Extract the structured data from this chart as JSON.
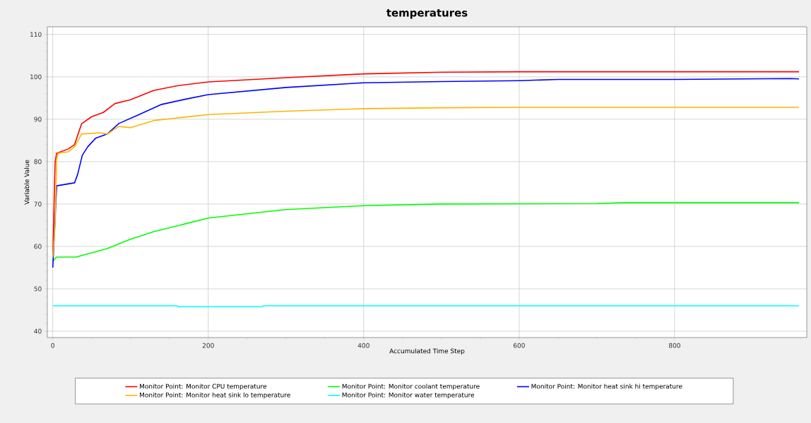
{
  "chart_data": {
    "type": "line",
    "title": "temperatures",
    "xlabel": "Accumulated Time Step",
    "ylabel": "Variable Value",
    "xlim": [
      -7,
      970
    ],
    "ylim": [
      38.5,
      111.8
    ],
    "xticks": [
      0,
      200,
      400,
      600,
      800
    ],
    "yticks": [
      40,
      50,
      60,
      70,
      80,
      90,
      100,
      110
    ],
    "grid": true,
    "legend": "bottom",
    "series": [
      {
        "name": "Monitor Point: Monitor CPU temperature",
        "color": "#ff0000",
        "x": [
          0,
          3,
          5,
          20,
          28,
          37,
          50,
          65,
          80,
          100,
          130,
          160,
          200,
          300,
          400,
          500,
          600,
          960
        ],
        "values": [
          57.5,
          80,
          82,
          83,
          84,
          88.9,
          90.6,
          91.6,
          93.7,
          94.6,
          96.8,
          97.9,
          98.8,
          99.8,
          100.7,
          101.1,
          101.2,
          101.2
        ]
      },
      {
        "name": "Monitor Point: Monitor coolant temperature",
        "color": "#00ff00",
        "x": [
          0,
          5,
          30,
          50,
          70,
          100,
          130,
          170,
          200,
          300,
          400,
          500,
          700,
          730,
          960
        ],
        "values": [
          56.5,
          57.5,
          57.5,
          58.5,
          59.5,
          61.7,
          63.5,
          65.3,
          66.7,
          68.7,
          69.6,
          70,
          70.1,
          70.3,
          70.3
        ]
      },
      {
        "name": "Monitor Point: Monitor heat sink hi temperature",
        "color": "#0000ff",
        "x": [
          0,
          5,
          28,
          32,
          38,
          45,
          55,
          70,
          85,
          110,
          140,
          170,
          200,
          300,
          400,
          500,
          600,
          650,
          800,
          950,
          960
        ],
        "values": [
          55,
          74.3,
          75,
          77,
          81.5,
          83.5,
          85.5,
          86.5,
          89,
          91,
          93.5,
          94.7,
          95.8,
          97.5,
          98.6,
          98.9,
          99.1,
          99.4,
          99.4,
          99.6,
          99.5
        ]
      },
      {
        "name": "Monitor Point: Monitor heat sink lo temperature",
        "color": "#ffb400",
        "x": [
          0,
          3,
          5,
          7,
          20,
          28,
          37,
          60,
          70,
          85,
          100,
          130,
          170,
          200,
          300,
          400,
          500,
          600,
          960
        ],
        "values": [
          57.5,
          65,
          80.5,
          82,
          82.3,
          83.5,
          86.5,
          86.8,
          86.5,
          88.3,
          88,
          89.7,
          90.5,
          91.1,
          91.9,
          92.5,
          92.7,
          92.8,
          92.8
        ]
      },
      {
        "name": "Monitor Point: Monitor water temperature",
        "color": "#00ffff",
        "x": [
          0,
          160,
          161,
          270,
          271,
          960
        ],
        "values": [
          46,
          46,
          45.8,
          45.8,
          46,
          46
        ]
      }
    ]
  }
}
